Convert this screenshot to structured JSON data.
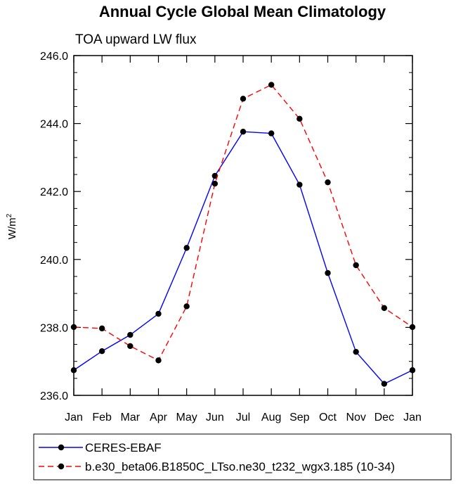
{
  "title": "Annual Cycle Global Mean Climatology",
  "subtitle": "TOA upward LW flux",
  "ylabel_main": "W/m",
  "ylabel_sup": "2",
  "chart_data": {
    "type": "line",
    "title": "Annual Cycle Global Mean Climatology",
    "subtitle": "TOA upward LW flux",
    "xlabel": "",
    "ylabel": "W/m2",
    "categories": [
      "Jan",
      "Feb",
      "Mar",
      "Apr",
      "May",
      "Jun",
      "Jul",
      "Aug",
      "Sep",
      "Oct",
      "Nov",
      "Dec",
      "Jan"
    ],
    "ylim": [
      236.0,
      246.0
    ],
    "yticks": [
      "236.0",
      "238.0",
      "240.0",
      "242.0",
      "244.0",
      "246.0"
    ],
    "grid": false,
    "legend_position": "bottom",
    "series": [
      {
        "name": "CERES-EBAF",
        "color": "#0000ff",
        "dash": "solid",
        "marker": "circle",
        "values": [
          236.74,
          237.3,
          237.78,
          238.4,
          240.34,
          242.46,
          243.76,
          243.71,
          242.2,
          239.6,
          237.28,
          236.34,
          236.74
        ]
      },
      {
        "name": "b.e30_beta06.B1850C_LTso.ne30_t232_wgx3.185 (10-34)",
        "color": "#ff0000",
        "dash": "dashed",
        "marker": "circle",
        "values": [
          238.01,
          237.97,
          237.45,
          237.03,
          238.62,
          242.23,
          244.73,
          245.14,
          244.14,
          242.27,
          239.83,
          238.57,
          238.01
        ]
      }
    ]
  }
}
